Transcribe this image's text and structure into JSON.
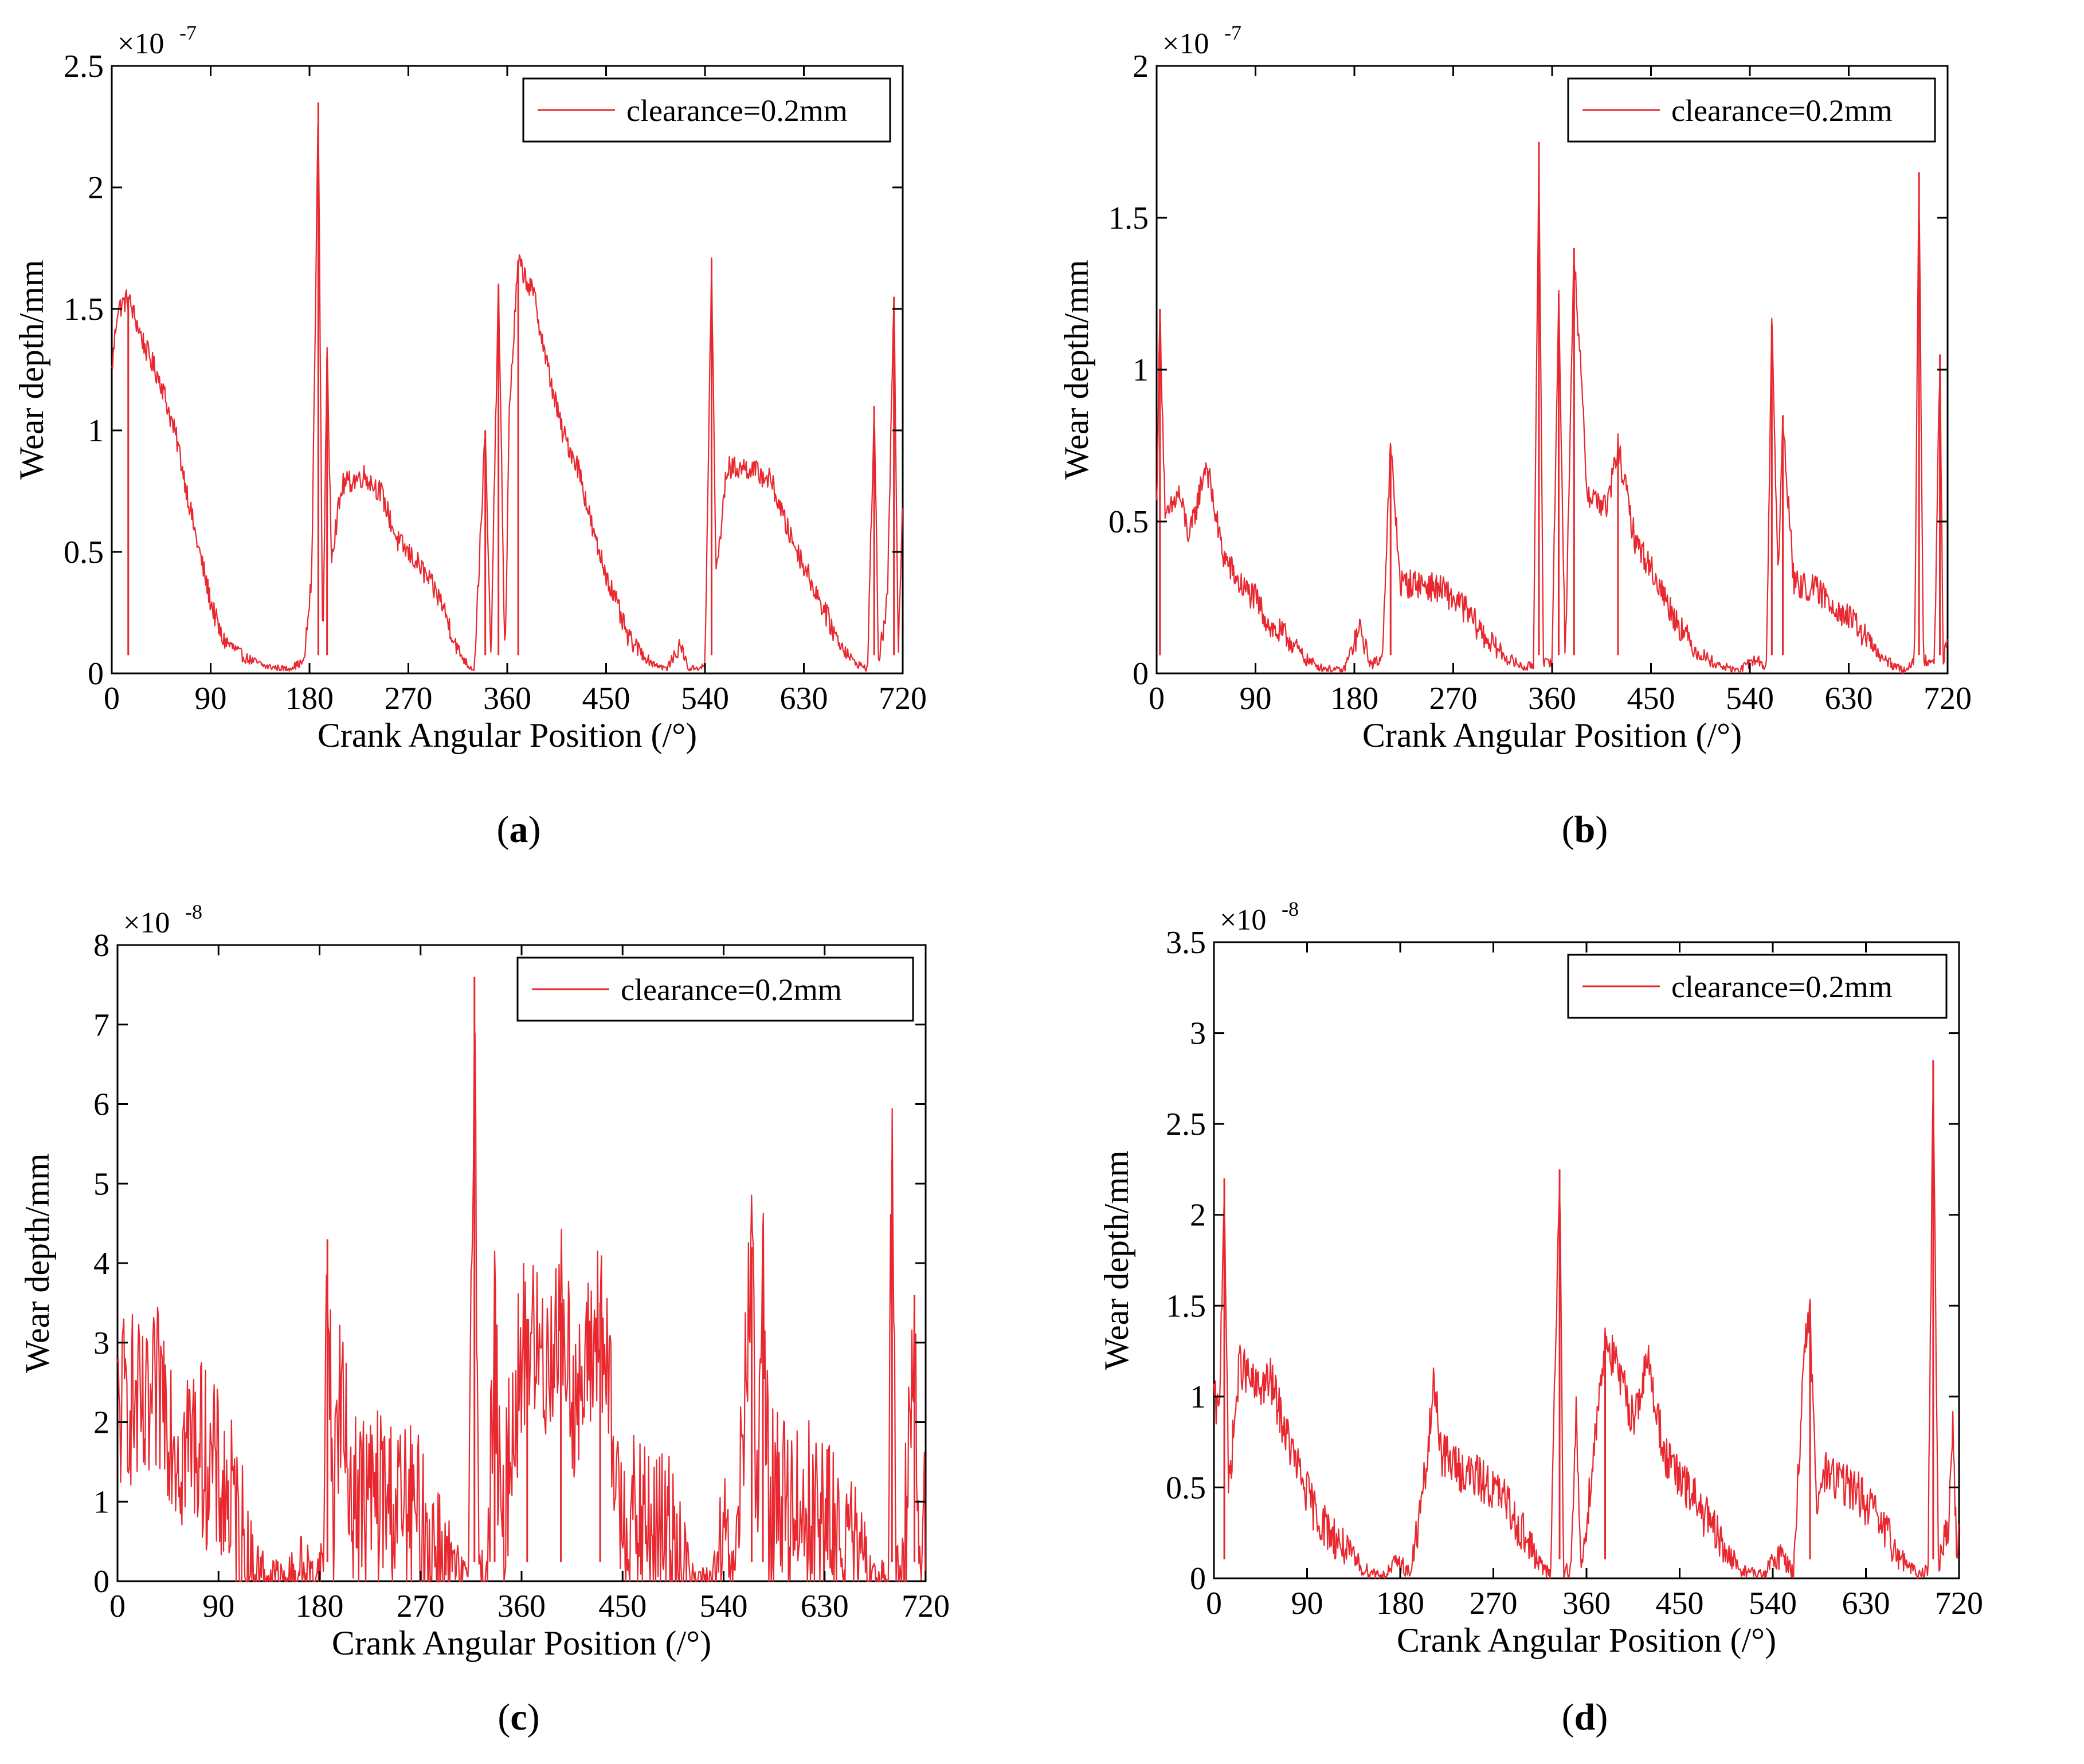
{
  "colors": {
    "series": "#e8272f",
    "axes": "#000000"
  },
  "chart_data": [
    {
      "id": "a",
      "type": "line",
      "caption": "a",
      "xlabel": "Crank Angular Position (/°)",
      "ylabel": "Wear depth/mm",
      "multiplier_base": "×10",
      "multiplier_exp": "-7",
      "xlim": [
        0,
        720
      ],
      "ylim": [
        0,
        2.5
      ],
      "xticks": [
        0,
        90,
        180,
        270,
        360,
        450,
        540,
        630,
        720
      ],
      "yticks": [
        0,
        0.5,
        1,
        1.5,
        2,
        2.5
      ],
      "ytick_labels": [
        "0",
        "0.5",
        "1",
        "1.5",
        "2",
        "2.5"
      ],
      "legend": "clearance=0.2mm",
      "legend_position": "top-right",
      "series": [
        {
          "name": "clearance=0.2mm",
          "envelope": [
            [
              0,
              1.25
            ],
            [
              5,
              1.5
            ],
            [
              15,
              1.55
            ],
            [
              30,
              1.35
            ],
            [
              45,
              1.2
            ],
            [
              60,
              0.95
            ],
            [
              75,
              0.6
            ],
            [
              90,
              0.3
            ],
            [
              100,
              0.15
            ],
            [
              120,
              0.07
            ],
            [
              140,
              0.03
            ],
            [
              160,
              0.02
            ],
            [
              175,
              0.05
            ],
            [
              182,
              0.4
            ],
            [
              188,
              2.35
            ],
            [
              192,
              0.1
            ],
            [
              196,
              1.3
            ],
            [
              200,
              0.5
            ],
            [
              210,
              0.78
            ],
            [
              230,
              0.82
            ],
            [
              245,
              0.75
            ],
            [
              260,
              0.55
            ],
            [
              280,
              0.45
            ],
            [
              300,
              0.3
            ],
            [
              315,
              0.1
            ],
            [
              325,
              0.03
            ],
            [
              330,
              0.02
            ],
            [
              340,
              1.0
            ],
            [
              345,
              0.05
            ],
            [
              352,
              1.6
            ],
            [
              358,
              0.05
            ],
            [
              362,
              1.1
            ],
            [
              370,
              1.7
            ],
            [
              385,
              1.55
            ],
            [
              395,
              1.3
            ],
            [
              410,
              1.0
            ],
            [
              425,
              0.85
            ],
            [
              440,
              0.55
            ],
            [
              455,
              0.35
            ],
            [
              470,
              0.15
            ],
            [
              490,
              0.05
            ],
            [
              505,
              0.02
            ],
            [
              518,
              0.12
            ],
            [
              525,
              0.02
            ],
            [
              540,
              0.03
            ],
            [
              546,
              1.7
            ],
            [
              550,
              0.4
            ],
            [
              560,
              0.85
            ],
            [
              580,
              0.85
            ],
            [
              600,
              0.8
            ],
            [
              615,
              0.6
            ],
            [
              630,
              0.45
            ],
            [
              645,
              0.3
            ],
            [
              660,
              0.15
            ],
            [
              675,
              0.05
            ],
            [
              688,
              0.02
            ],
            [
              694,
              1.1
            ],
            [
              698,
              0.05
            ],
            [
              706,
              0.3
            ],
            [
              712,
              1.55
            ],
            [
              716,
              0.1
            ],
            [
              720,
              0.75
            ]
          ],
          "noise": 0.08
        }
      ]
    },
    {
      "id": "b",
      "type": "line",
      "caption": "b",
      "xlabel": "Crank Angular Position (/°)",
      "ylabel": "Wear depth/mm",
      "multiplier_base": "×10",
      "multiplier_exp": "-7",
      "xlim": [
        0,
        720
      ],
      "ylim": [
        0,
        2
      ],
      "xticks": [
        0,
        90,
        180,
        270,
        360,
        450,
        540,
        630,
        720
      ],
      "yticks": [
        0,
        0.5,
        1,
        1.5,
        2
      ],
      "ytick_labels": [
        "0",
        "0.5",
        "1",
        "1.5",
        "2"
      ],
      "legend": "clearance=0.2mm",
      "legend_position": "top-right",
      "series": [
        {
          "name": "clearance=0.2mm",
          "envelope": [
            [
              0,
              0.55
            ],
            [
              3,
              1.2
            ],
            [
              8,
              0.5
            ],
            [
              20,
              0.6
            ],
            [
              30,
              0.45
            ],
            [
              45,
              0.7
            ],
            [
              60,
              0.4
            ],
            [
              75,
              0.3
            ],
            [
              90,
              0.25
            ],
            [
              105,
              0.15
            ],
            [
              120,
              0.12
            ],
            [
              135,
              0.05
            ],
            [
              150,
              0.02
            ],
            [
              170,
              0.01
            ],
            [
              185,
              0.15
            ],
            [
              195,
              0.03
            ],
            [
              205,
              0.05
            ],
            [
              213,
              0.75
            ],
            [
              222,
              0.3
            ],
            [
              240,
              0.3
            ],
            [
              260,
              0.28
            ],
            [
              280,
              0.22
            ],
            [
              300,
              0.12
            ],
            [
              320,
              0.05
            ],
            [
              335,
              0.02
            ],
            [
              343,
              0.03
            ],
            [
              348,
              1.75
            ],
            [
              352,
              0.03
            ],
            [
              360,
              0.05
            ],
            [
              366,
              1.25
            ],
            [
              372,
              0.05
            ],
            [
              380,
              1.4
            ],
            [
              392,
              0.6
            ],
            [
              410,
              0.55
            ],
            [
              420,
              0.75
            ],
            [
              435,
              0.45
            ],
            [
              450,
              0.35
            ],
            [
              470,
              0.2
            ],
            [
              490,
              0.08
            ],
            [
              510,
              0.03
            ],
            [
              530,
              0.01
            ],
            [
              545,
              0.05
            ],
            [
              555,
              0.02
            ],
            [
              560,
              1.15
            ],
            [
              566,
              0.3
            ],
            [
              570,
              0.85
            ],
            [
              580,
              0.3
            ],
            [
              600,
              0.28
            ],
            [
              620,
              0.22
            ],
            [
              640,
              0.15
            ],
            [
              660,
              0.05
            ],
            [
              680,
              0.01
            ],
            [
              690,
              0.05
            ],
            [
              694,
              1.65
            ],
            [
              698,
              0.05
            ],
            [
              708,
              0.05
            ],
            [
              713,
              1.05
            ],
            [
              716,
              0.05
            ],
            [
              720,
              0.1
            ]
          ],
          "noise": 0.1
        }
      ]
    },
    {
      "id": "c",
      "type": "line",
      "caption": "c",
      "xlabel": "Crank Angular Position (/°)",
      "ylabel": "Wear depth/mm",
      "multiplier_base": "×10",
      "multiplier_exp": "-8",
      "xlim": [
        0,
        720
      ],
      "ylim": [
        0,
        8
      ],
      "xticks": [
        0,
        90,
        180,
        270,
        360,
        450,
        540,
        630,
        720
      ],
      "yticks": [
        0,
        1,
        2,
        3,
        4,
        5,
        6,
        7,
        8
      ],
      "ytick_labels": [
        "0",
        "1",
        "2",
        "3",
        "4",
        "5",
        "6",
        "7",
        "8"
      ],
      "legend": "clearance=0.2mm",
      "legend_position": "top-right",
      "series": [
        {
          "name": "clearance=0.2mm",
          "envelope": [
            [
              0,
              2.2
            ],
            [
              10,
              2.5
            ],
            [
              25,
              2.0
            ],
            [
              40,
              2.6
            ],
            [
              55,
              1.8
            ],
            [
              70,
              1.9
            ],
            [
              85,
              1.5
            ],
            [
              100,
              1.1
            ],
            [
              110,
              0.6
            ],
            [
              120,
              0.2
            ],
            [
              135,
              0.08
            ],
            [
              150,
              0.03
            ],
            [
              165,
              0.2
            ],
            [
              175,
              0.05
            ],
            [
              183,
              0.2
            ],
            [
              187,
              4.3
            ],
            [
              192,
              1.0
            ],
            [
              198,
              2.6
            ],
            [
              205,
              1.5
            ],
            [
              215,
              1.1
            ],
            [
              235,
              1.2
            ],
            [
              255,
              1.0
            ],
            [
              270,
              0.8
            ],
            [
              285,
              0.5
            ],
            [
              300,
              0.15
            ],
            [
              312,
              0.02
            ],
            [
              318,
              7.6
            ],
            [
              322,
              0.1
            ],
            [
              330,
              0.2
            ],
            [
              336,
              3.3
            ],
            [
              342,
              0.3
            ],
            [
              350,
              2.0
            ],
            [
              365,
              3.3
            ],
            [
              380,
              2.8
            ],
            [
              395,
              3.5
            ],
            [
              410,
              2.2
            ],
            [
              430,
              3.5
            ],
            [
              445,
              1.2
            ],
            [
              460,
              0.8
            ],
            [
              480,
              0.7
            ],
            [
              500,
              0.6
            ],
            [
              510,
              0.03
            ],
            [
              530,
              0.02
            ],
            [
              540,
              0.5
            ],
            [
              550,
              0.05
            ],
            [
              565,
              4.2
            ],
            [
              570,
              0.5
            ],
            [
              575,
              4.2
            ],
            [
              580,
              1.2
            ],
            [
              600,
              1.1
            ],
            [
              620,
              1.0
            ],
            [
              640,
              0.7
            ],
            [
              660,
              0.35
            ],
            [
              675,
              0.05
            ],
            [
              686,
              0.05
            ],
            [
              690,
              5.3
            ],
            [
              694,
              0.1
            ],
            [
              700,
              0.2
            ],
            [
              710,
              3.6
            ],
            [
              714,
              0.3
            ],
            [
              720,
              1.0
            ]
          ],
          "noise": 0.6
        }
      ]
    },
    {
      "id": "d",
      "type": "line",
      "caption": "d",
      "xlabel": "Crank Angular Position (/°)",
      "ylabel": "Wear depth/mm",
      "multiplier_base": "×10",
      "multiplier_exp": "-8",
      "xlim": [
        0,
        720
      ],
      "ylim": [
        0,
        3.5
      ],
      "xticks": [
        0,
        90,
        180,
        270,
        360,
        450,
        540,
        630,
        720
      ],
      "yticks": [
        0,
        0.5,
        1,
        1.5,
        2,
        2.5,
        3,
        3.5
      ],
      "ytick_labels": [
        "0",
        "0.5",
        "1",
        "1.5",
        "2",
        "2.5",
        "3",
        "3.5"
      ],
      "legend": "clearance=0.2mm",
      "legend_position": "top-right",
      "series": [
        {
          "name": "clearance=0.2mm",
          "envelope": [
            [
              0,
              1.0
            ],
            [
              5,
              0.9
            ],
            [
              10,
              2.2
            ],
            [
              14,
              0.5
            ],
            [
              25,
              1.2
            ],
            [
              40,
              1.05
            ],
            [
              55,
              1.1
            ],
            [
              70,
              0.8
            ],
            [
              85,
              0.55
            ],
            [
              100,
              0.35
            ],
            [
              115,
              0.25
            ],
            [
              130,
              0.15
            ],
            [
              145,
              0.05
            ],
            [
              165,
              0.02
            ],
            [
              178,
              0.1
            ],
            [
              190,
              0.03
            ],
            [
              205,
              0.6
            ],
            [
              213,
              1.1
            ],
            [
              220,
              0.7
            ],
            [
              240,
              0.6
            ],
            [
              260,
              0.55
            ],
            [
              280,
              0.45
            ],
            [
              300,
              0.25
            ],
            [
              315,
              0.08
            ],
            [
              325,
              0.02
            ],
            [
              334,
              2.25
            ],
            [
              338,
              0.05
            ],
            [
              345,
              0.05
            ],
            [
              350,
              0.9
            ],
            [
              355,
              0.05
            ],
            [
              365,
              0.6
            ],
            [
              378,
              1.35
            ],
            [
              390,
              1.15
            ],
            [
              405,
              0.9
            ],
            [
              420,
              1.2
            ],
            [
              435,
              0.7
            ],
            [
              450,
              0.55
            ],
            [
              465,
              0.45
            ],
            [
              480,
              0.3
            ],
            [
              495,
              0.15
            ],
            [
              510,
              0.05
            ],
            [
              530,
              0.02
            ],
            [
              548,
              0.15
            ],
            [
              560,
              0.03
            ],
            [
              570,
              1.25
            ],
            [
              576,
              1.45
            ],
            [
              582,
              0.4
            ],
            [
              590,
              0.6
            ],
            [
              605,
              0.55
            ],
            [
              620,
              0.5
            ],
            [
              640,
              0.35
            ],
            [
              660,
              0.15
            ],
            [
              680,
              0.02
            ],
            [
              690,
              0.05
            ],
            [
              695,
              2.85
            ],
            [
              700,
              0.1
            ],
            [
              710,
              0.3
            ],
            [
              714,
              0.9
            ],
            [
              718,
              0.1
            ],
            [
              720,
              0.4
            ]
          ],
          "noise": 0.15
        }
      ]
    }
  ]
}
